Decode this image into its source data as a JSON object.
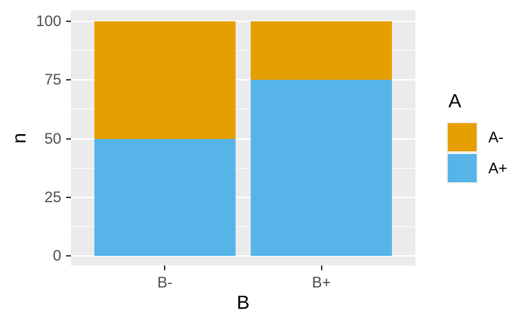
{
  "figure": {
    "background": "#FFFFFF",
    "panel_bg": "#EBEBEB",
    "grid_color": "#FFFFFF",
    "tick_mark_color": "#333333",
    "tick_label_color": "#4D4D4D",
    "title_color": "#000000",
    "legend_key_bg": "#F2F2F2"
  },
  "chart_data": {
    "type": "bar",
    "stacked": true,
    "orientation": "vertical",
    "title": "",
    "xlabel": "B",
    "ylabel": "n",
    "categories": [
      "B-",
      "B+"
    ],
    "series": [
      {
        "name": "A+",
        "color": "#56B4E9",
        "values": [
          50,
          75
        ]
      },
      {
        "name": "A-",
        "color": "#E69F00",
        "values": [
          50,
          25
        ]
      }
    ],
    "totals": [
      100,
      100
    ],
    "ylim": [
      0,
      100
    ],
    "yticks": [
      0,
      25,
      50,
      75,
      100
    ],
    "yminor": [
      12.5,
      37.5,
      62.5,
      87.5
    ],
    "grid": true,
    "legend": {
      "title": "A",
      "position": "right",
      "items": [
        {
          "label": "A-",
          "color": "#E69F00"
        },
        {
          "label": "A+",
          "color": "#56B4E9"
        }
      ]
    }
  }
}
